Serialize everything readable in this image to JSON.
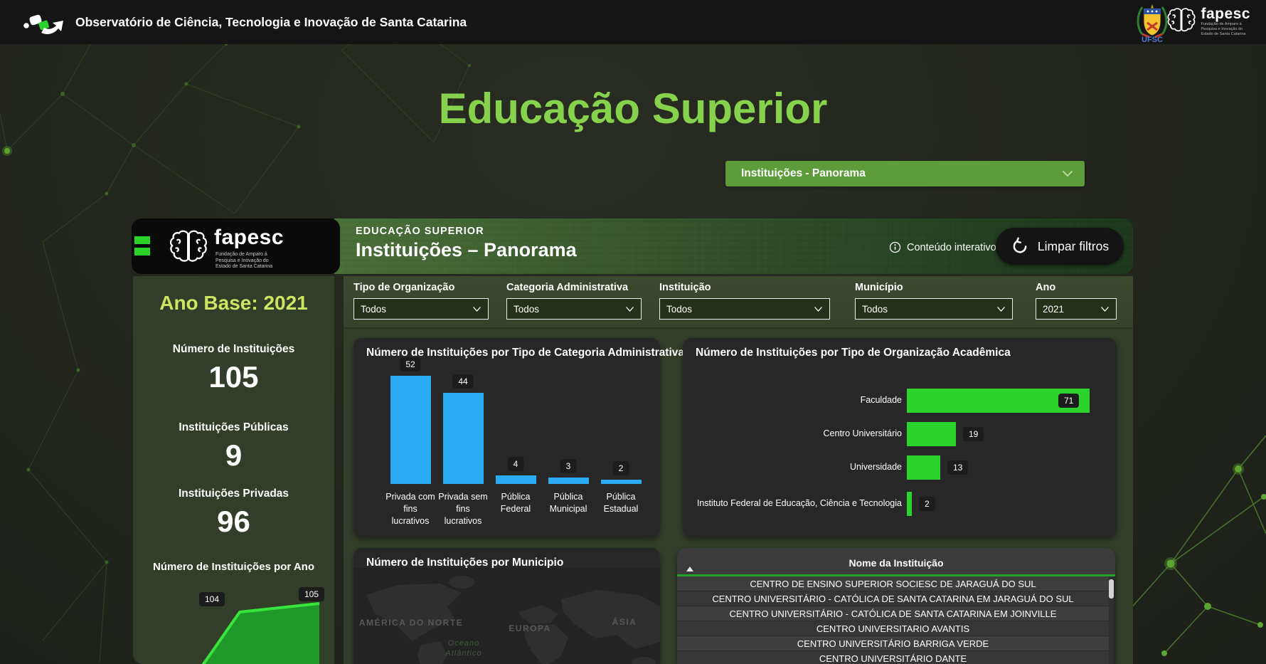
{
  "top_bar": {
    "title": "Observatório de Ciência, Tecnologia e Inovação de Santa Catarina",
    "ufsc_label": "UFSC"
  },
  "fapesc_logo": {
    "name": "fapesc",
    "subtitle_lines": [
      "Fundação de Amparo à",
      "Pesquisa e Inovação do",
      "Estado de Santa Catarina"
    ]
  },
  "page": {
    "title": "Educação Superior",
    "view_selector_value": "Instituições - Panorama"
  },
  "panel": {
    "header": {
      "kicker": "EDUCAÇÃO SUPERIOR",
      "title": "Instituições – Panorama",
      "interactive_note": "Conteúdo interativo",
      "clear_filters": "Limpar filtros"
    },
    "filters": [
      {
        "label": "Tipo de Organização",
        "value": "Todos"
      },
      {
        "label": "Categoria Administrativa",
        "value": "Todos"
      },
      {
        "label": "Instituição",
        "value": "Todos"
      },
      {
        "label": "Município",
        "value": "Todos"
      },
      {
        "label": "Ano",
        "value": "2021"
      }
    ],
    "sidebar": {
      "ano_base": "Ano Base: 2021",
      "kpis": [
        {
          "label": "Número de Instituições",
          "value": "105"
        },
        {
          "label": "Instituições Públicas",
          "value": "9"
        },
        {
          "label": "Instituições Privadas",
          "value": "96"
        }
      ]
    }
  },
  "chart_data": [
    {
      "id": "instituicoes_por_ano",
      "type": "area",
      "title": "Número de Instituições por Ano",
      "points": [
        {
          "label": "104",
          "value": 104
        },
        {
          "label": "105",
          "value": 105
        }
      ]
    },
    {
      "id": "categoria_administrativa",
      "type": "bar",
      "title": "Número de Instituições por Tipo de Categoria Administrativa",
      "categories": [
        [
          "Privada com",
          "fins",
          "lucrativos"
        ],
        [
          "Privada sem",
          "fins",
          "lucrativos"
        ],
        [
          "Pública",
          "Federal"
        ],
        [
          "Pública",
          "Municipal"
        ],
        [
          "Pública",
          "Estadual"
        ]
      ],
      "values": [
        52,
        44,
        4,
        3,
        2
      ]
    },
    {
      "id": "organizacao_academica",
      "type": "horizontal-bar",
      "title": "Número de Instituições por Tipo de Organização Acadêmica",
      "categories": [
        "Faculdade",
        "Centro Universitário",
        "Universidade",
        "Instituto Federal de Educação, Ciência e Tecnologia"
      ],
      "values": [
        71,
        19,
        13,
        2
      ]
    },
    {
      "id": "municipio_map",
      "type": "map",
      "title": "Número de Instituições por Municipio",
      "region_labels": [
        "AMÉRICA DO NORTE",
        "EUROPA",
        "ÁSIA"
      ],
      "ocean_label_lines": [
        "Oceano",
        "Atlântico"
      ]
    }
  ],
  "table": {
    "header": "Nome da Instituição",
    "rows": [
      "CENTRO DE ENSINO SUPERIOR SOCIESC DE JARAGUÁ DO SUL",
      "CENTRO UNIVERSITÁRIO - CATÓLICA DE SANTA CATARINA EM JARAGUÁ DO SUL",
      "CENTRO UNIVERSITÁRIO - CATÓLICA DE SANTA CATARINA EM JOINVILLE",
      "CENTRO UNIVERSITARIO AVANTIS",
      "CENTRO UNIVERSITÁRIO BARRIGA VERDE",
      "CENTRO UNIVERSITÁRIO DANTE"
    ]
  },
  "colors": {
    "title_green": "#87d24c",
    "accent_green": "#5e9c3b",
    "ano_base_green": "#cde561",
    "bar_blue": "#2aabf2",
    "bar_green": "#2cd32c",
    "area_line": "#38e53c",
    "area_fill": "#1f9e2a",
    "table_rule_green": "#23a52d"
  }
}
